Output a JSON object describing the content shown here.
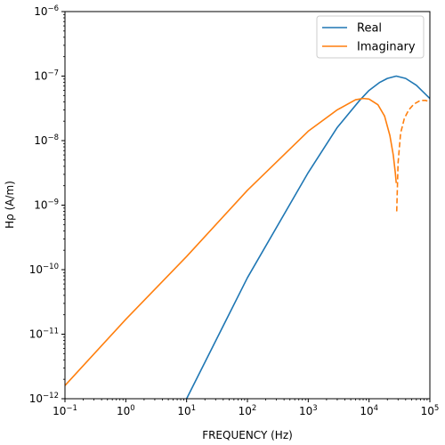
{
  "chart_data": {
    "type": "line",
    "title": "",
    "xlabel": "FREQUENCY (Hz)",
    "ylabel": "Hρ (A/m)",
    "xscale": "log",
    "yscale": "log",
    "xlim": [
      0.1,
      100000
    ],
    "ylim": [
      1e-12,
      1e-06
    ],
    "grid": false,
    "legend_position": "top-right",
    "x_ticks": [
      {
        "value": 0.1,
        "base": "10",
        "exp": "−1"
      },
      {
        "value": 1,
        "base": "10",
        "exp": "0"
      },
      {
        "value": 10,
        "base": "10",
        "exp": "1"
      },
      {
        "value": 100,
        "base": "10",
        "exp": "2"
      },
      {
        "value": 1000,
        "base": "10",
        "exp": "3"
      },
      {
        "value": 10000,
        "base": "10",
        "exp": "4"
      },
      {
        "value": 100000,
        "base": "10",
        "exp": "5"
      }
    ],
    "y_ticks": [
      {
        "value": 1e-12,
        "base": "10",
        "exp": "−12"
      },
      {
        "value": 1e-11,
        "base": "10",
        "exp": "−11"
      },
      {
        "value": 1e-10,
        "base": "10",
        "exp": "−10"
      },
      {
        "value": 1e-09,
        "base": "10",
        "exp": "−9"
      },
      {
        "value": 1e-08,
        "base": "10",
        "exp": "−8"
      },
      {
        "value": 1e-07,
        "base": "10",
        "exp": "−7"
      },
      {
        "value": 1e-06,
        "base": "10",
        "exp": "−6"
      }
    ],
    "series": [
      {
        "name": "Real",
        "color": "#1f77b4",
        "style": "solid",
        "x": [
          10,
          100,
          1000,
          3000,
          7000,
          10000,
          15000,
          20000,
          28000,
          40000,
          60000,
          100000
        ],
        "y": [
          1e-12,
          7.5e-11,
          3.2e-09,
          1.6e-08,
          4.2e-08,
          6e-08,
          8e-08,
          9.2e-08,
          1e-07,
          9.2e-08,
          7.2e-08,
          4.5e-08
        ]
      },
      {
        "name": "Imaginary",
        "color": "#ff7f0e",
        "style": "solid",
        "x": [
          0.1,
          1,
          10,
          100,
          1000,
          3000,
          6000,
          8000,
          10000,
          14000,
          18000,
          22000,
          25000,
          27000,
          28000
        ],
        "y": [
          1.6e-12,
          1.7e-11,
          1.6e-10,
          1.7e-09,
          1.4e-08,
          3e-08,
          4.3e-08,
          4.5e-08,
          4.4e-08,
          3.6e-08,
          2.4e-08,
          1.2e-08,
          6e-09,
          3.2e-09,
          2.2e-09
        ]
      },
      {
        "name": "",
        "color": "#ff7f0e",
        "style": "dashed",
        "x": [
          28500,
          30000,
          33000,
          38000,
          45000,
          55000,
          70000,
          85000,
          100000
        ],
        "y": [
          8e-10,
          4.5e-09,
          1.3e-08,
          2.2e-08,
          3e-08,
          3.7e-08,
          4.2e-08,
          4.2e-08,
          4e-08
        ]
      }
    ]
  }
}
